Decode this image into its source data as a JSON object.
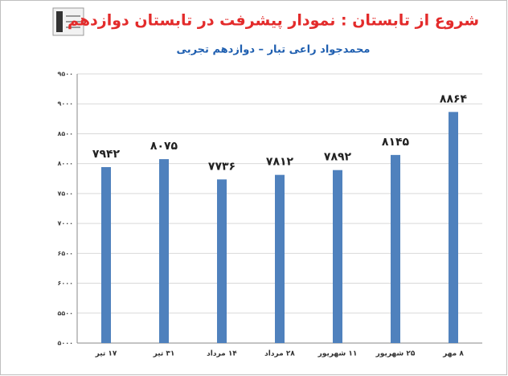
{
  "chart_data": {
    "type": "bar",
    "title": "شروع از تابستان : نمودار پیشرفت در تابستان دوازدهم",
    "subtitle": "محمدجواد راعی تبار – دوازدهم تجربی",
    "categories": [
      "۱۷ تیر",
      "۳۱ تیر",
      "۱۴ مرداد",
      "۲۸ مرداد",
      "۱۱ شهریور",
      "۲۵ شهریور",
      "۸ مهر"
    ],
    "values": [
      7942,
      8075,
      7736,
      7812,
      7892,
      8145,
      8864
    ],
    "value_labels": [
      "۷۹۴۲",
      "۸۰۷۵",
      "۷۷۳۶",
      "۷۸۱۲",
      "۷۸۹۲",
      "۸۱۴۵",
      "۸۸۶۴"
    ],
    "color": "#4f81bd",
    "ylim": [
      5000,
      9500
    ],
    "yticks": [
      {
        "value": 5000,
        "label": "۵۰۰۰"
      },
      {
        "value": 5500,
        "label": "۵۵۰۰"
      },
      {
        "value": 6000,
        "label": "۶۰۰۰"
      },
      {
        "value": 6500,
        "label": "۶۵۰۰"
      },
      {
        "value": 7000,
        "label": "۷۰۰۰"
      },
      {
        "value": 7500,
        "label": "۷۵۰۰"
      },
      {
        "value": 8000,
        "label": "۸۰۰۰"
      },
      {
        "value": 8500,
        "label": "۸۵۰۰"
      },
      {
        "value": 9000,
        "label": "۹۰۰۰"
      },
      {
        "value": 9500,
        "label": "۹۵۰۰"
      }
    ],
    "grid": true
  }
}
